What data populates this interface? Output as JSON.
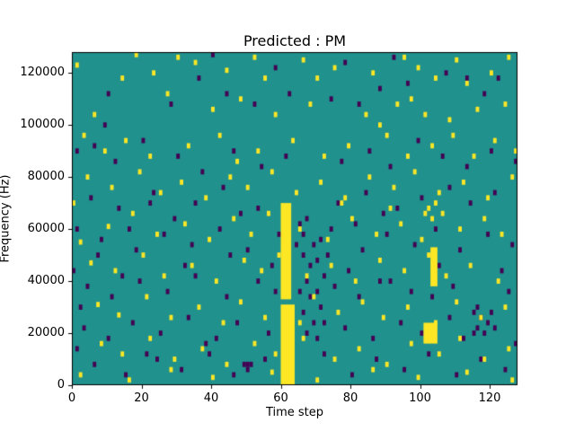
{
  "figure": {
    "title": "Predicted : PM",
    "xlabel": "Time step",
    "ylabel": "Frequency (Hz)"
  },
  "chart_data": {
    "type": "heatmap",
    "title": "Predicted : PM",
    "xlabel": "Time step",
    "ylabel": "Frequency (Hz)",
    "xlim": [
      0,
      128
    ],
    "ylim": [
      0,
      128000
    ],
    "x_ticks": [
      0,
      20,
      40,
      60,
      80,
      100,
      120
    ],
    "y_ticks": [
      0,
      20000,
      40000,
      60000,
      80000,
      100000,
      120000
    ],
    "grid": [
      128,
      128
    ],
    "f_unit": "kHz",
    "legend_position": "none",
    "grid_lines": false,
    "colors": {
      "background": "#20918c",
      "high": "#fde725",
      "low": "#440154"
    },
    "yellow_bands": [
      {
        "t0": 60,
        "t1": 64,
        "f0": 0,
        "f1": 31
      },
      {
        "t0": 60,
        "t1": 63,
        "f0": 33,
        "f1": 70
      },
      {
        "t0": 103,
        "t1": 105,
        "f0": 38,
        "f1": 53
      },
      {
        "t0": 101,
        "t1": 105,
        "f0": 16,
        "f1": 24
      }
    ],
    "yellow_cells": [
      [
        1,
        123
      ],
      [
        3,
        96
      ],
      [
        2,
        4
      ],
      [
        4,
        80
      ],
      [
        5,
        47
      ],
      [
        6,
        104
      ],
      [
        7,
        31
      ],
      [
        8,
        16
      ],
      [
        9,
        90
      ],
      [
        10,
        61
      ],
      [
        11,
        76
      ],
      [
        12,
        44
      ],
      [
        13,
        27
      ],
      [
        14,
        118
      ],
      [
        14,
        12
      ],
      [
        15,
        94
      ],
      [
        16,
        2
      ],
      [
        17,
        66
      ],
      [
        18,
        127
      ],
      [
        19,
        82
      ],
      [
        20,
        50
      ],
      [
        21,
        34
      ],
      [
        22,
        88
      ],
      [
        22,
        18
      ],
      [
        23,
        120
      ],
      [
        24,
        58
      ],
      [
        25,
        74
      ],
      [
        26,
        42
      ],
      [
        27,
        112
      ],
      [
        28,
        6
      ],
      [
        28,
        26
      ],
      [
        29,
        10
      ],
      [
        30,
        126
      ],
      [
        31,
        78
      ],
      [
        32,
        62
      ],
      [
        33,
        92
      ],
      [
        34,
        46
      ],
      [
        35,
        124
      ],
      [
        36,
        30
      ],
      [
        37,
        14
      ],
      [
        38,
        72
      ],
      [
        39,
        56
      ],
      [
        40,
        106
      ],
      [
        40,
        3
      ],
      [
        41,
        40
      ],
      [
        42,
        96
      ],
      [
        43,
        24
      ],
      [
        44,
        121
      ],
      [
        44,
        8
      ],
      [
        45,
        80
      ],
      [
        46,
        64
      ],
      [
        47,
        86
      ],
      [
        48,
        110
      ],
      [
        48,
        32
      ],
      [
        49,
        48
      ],
      [
        50,
        76
      ],
      [
        51,
        58
      ],
      [
        52,
        126
      ],
      [
        52,
        16
      ],
      [
        53,
        90
      ],
      [
        54,
        44
      ],
      [
        55,
        118
      ],
      [
        55,
        26
      ],
      [
        56,
        66
      ],
      [
        57,
        82
      ],
      [
        57,
        5
      ],
      [
        58,
        104
      ],
      [
        58,
        12
      ],
      [
        59,
        50
      ],
      [
        63,
        94
      ],
      [
        64,
        74
      ],
      [
        65,
        60
      ],
      [
        65,
        24
      ],
      [
        66,
        125
      ],
      [
        66,
        18
      ],
      [
        67,
        42
      ],
      [
        68,
        108
      ],
      [
        69,
        34
      ],
      [
        70,
        118
      ],
      [
        70,
        2
      ],
      [
        71,
        78
      ],
      [
        72,
        88
      ],
      [
        73,
        56
      ],
      [
        74,
        46
      ],
      [
        75,
        122
      ],
      [
        75,
        10
      ],
      [
        76,
        28
      ],
      [
        77,
        70
      ],
      [
        78,
        72
      ],
      [
        79,
        92
      ],
      [
        80,
        64
      ],
      [
        81,
        40
      ],
      [
        82,
        14
      ],
      [
        83,
        32
      ],
      [
        84,
        104
      ],
      [
        85,
        80
      ],
      [
        86,
        120
      ],
      [
        86,
        6
      ],
      [
        87,
        58
      ],
      [
        88,
        100
      ],
      [
        88,
        48
      ],
      [
        89,
        26
      ],
      [
        90,
        96
      ],
      [
        90,
        8
      ],
      [
        91,
        68
      ],
      [
        92,
        76
      ],
      [
        93,
        108
      ],
      [
        94,
        62
      ],
      [
        95,
        126
      ],
      [
        95,
        44
      ],
      [
        96,
        88
      ],
      [
        96,
        30
      ],
      [
        97,
        110
      ],
      [
        97,
        16
      ],
      [
        98,
        82
      ],
      [
        99,
        122
      ],
      [
        99,
        3
      ],
      [
        100,
        56
      ],
      [
        101,
        104
      ],
      [
        102,
        50
      ],
      [
        103,
        92
      ],
      [
        101,
        66
      ],
      [
        102,
        68
      ],
      [
        103,
        64
      ],
      [
        104,
        70
      ],
      [
        104,
        118
      ],
      [
        104,
        24
      ],
      [
        105,
        74
      ],
      [
        105,
        12
      ],
      [
        106,
        66
      ],
      [
        107,
        42
      ],
      [
        108,
        102
      ],
      [
        109,
        96
      ],
      [
        110,
        125
      ],
      [
        110,
        32
      ],
      [
        111,
        60
      ],
      [
        111,
        18
      ],
      [
        112,
        78
      ],
      [
        113,
        116
      ],
      [
        113,
        5
      ],
      [
        114,
        46
      ],
      [
        115,
        88
      ],
      [
        116,
        106
      ],
      [
        117,
        26
      ],
      [
        118,
        64
      ],
      [
        118,
        10
      ],
      [
        119,
        72
      ],
      [
        120,
        120
      ],
      [
        121,
        94
      ],
      [
        122,
        40
      ],
      [
        123,
        58
      ],
      [
        124,
        108
      ],
      [
        124,
        30
      ],
      [
        125,
        126
      ],
      [
        125,
        14
      ],
      [
        126,
        80
      ],
      [
        127,
        90
      ],
      [
        126,
        2
      ],
      [
        0,
        70
      ],
      [
        2,
        55
      ]
    ],
    "purple_cells": [
      [
        0,
        44
      ],
      [
        1,
        90
      ],
      [
        1,
        60
      ],
      [
        1,
        14
      ],
      [
        2,
        30
      ],
      [
        3,
        22
      ],
      [
        4,
        38
      ],
      [
        5,
        72
      ],
      [
        6,
        92
      ],
      [
        6,
        8
      ],
      [
        7,
        50
      ],
      [
        8,
        56
      ],
      [
        9,
        100
      ],
      [
        10,
        18
      ],
      [
        10,
        112
      ],
      [
        11,
        34
      ],
      [
        12,
        86
      ],
      [
        13,
        68
      ],
      [
        14,
        42
      ],
      [
        15,
        4
      ],
      [
        16,
        60
      ],
      [
        17,
        24
      ],
      [
        18,
        52
      ],
      [
        19,
        40
      ],
      [
        20,
        94
      ],
      [
        21,
        12
      ],
      [
        22,
        70
      ],
      [
        23,
        74
      ],
      [
        24,
        10
      ],
      [
        25,
        20
      ],
      [
        26,
        58
      ],
      [
        27,
        36
      ],
      [
        28,
        108
      ],
      [
        29,
        64
      ],
      [
        30,
        88
      ],
      [
        31,
        6
      ],
      [
        32,
        46
      ],
      [
        33,
        26
      ],
      [
        34,
        54
      ],
      [
        35,
        70
      ],
      [
        35,
        42
      ],
      [
        36,
        118
      ],
      [
        37,
        82
      ],
      [
        38,
        16
      ],
      [
        39,
        12
      ],
      [
        40,
        127
      ],
      [
        41,
        18
      ],
      [
        42,
        60
      ],
      [
        43,
        76
      ],
      [
        44,
        112
      ],
      [
        44,
        34
      ],
      [
        45,
        50
      ],
      [
        46,
        90
      ],
      [
        46,
        4
      ],
      [
        47,
        24
      ],
      [
        48,
        66
      ],
      [
        49,
        8
      ],
      [
        50,
        8
      ],
      [
        50,
        52
      ],
      [
        51,
        8
      ],
      [
        50,
        6
      ],
      [
        52,
        108
      ],
      [
        53,
        40
      ],
      [
        53,
        68
      ],
      [
        54,
        84
      ],
      [
        55,
        10
      ],
      [
        56,
        20
      ],
      [
        57,
        46
      ],
      [
        58,
        122
      ],
      [
        58,
        36
      ],
      [
        59,
        58
      ],
      [
        61,
        88
      ],
      [
        62,
        112
      ],
      [
        62,
        2
      ],
      [
        63,
        6
      ],
      [
        64,
        54
      ],
      [
        65,
        62
      ],
      [
        65,
        36
      ],
      [
        66,
        58
      ],
      [
        66,
        50
      ],
      [
        66,
        28
      ],
      [
        67,
        64
      ],
      [
        67,
        40
      ],
      [
        67,
        20
      ],
      [
        68,
        46
      ],
      [
        68,
        34
      ],
      [
        69,
        54
      ],
      [
        69,
        24
      ],
      [
        70,
        48
      ],
      [
        70,
        36
      ],
      [
        70,
        18
      ],
      [
        71,
        30
      ],
      [
        71,
        56
      ],
      [
        72,
        42
      ],
      [
        72,
        24
      ],
      [
        72,
        12
      ],
      [
        73,
        50
      ],
      [
        74,
        60
      ],
      [
        74,
        110
      ],
      [
        75,
        38
      ],
      [
        76,
        70
      ],
      [
        77,
        86
      ],
      [
        78,
        124
      ],
      [
        78,
        22
      ],
      [
        79,
        44
      ],
      [
        80,
        4
      ],
      [
        81,
        62
      ],
      [
        82,
        34
      ],
      [
        82,
        108
      ],
      [
        83,
        52
      ],
      [
        84,
        74
      ],
      [
        85,
        90
      ],
      [
        86,
        18
      ],
      [
        87,
        10
      ],
      [
        88,
        114
      ],
      [
        88,
        40
      ],
      [
        89,
        66
      ],
      [
        90,
        58
      ],
      [
        91,
        84
      ],
      [
        91,
        40
      ],
      [
        92,
        126
      ],
      [
        93,
        68
      ],
      [
        94,
        24
      ],
      [
        95,
        6
      ],
      [
        96,
        116
      ],
      [
        97,
        36
      ],
      [
        98,
        54
      ],
      [
        99,
        94
      ],
      [
        100,
        20
      ],
      [
        100,
        72
      ],
      [
        102,
        12
      ],
      [
        103,
        34
      ],
      [
        104,
        60
      ],
      [
        105,
        46
      ],
      [
        106,
        88
      ],
      [
        107,
        120
      ],
      [
        108,
        26
      ],
      [
        108,
        76
      ],
      [
        109,
        38
      ],
      [
        110,
        4
      ],
      [
        111,
        52
      ],
      [
        112,
        18
      ],
      [
        113,
        84
      ],
      [
        113,
        118
      ],
      [
        114,
        70
      ],
      [
        115,
        28
      ],
      [
        115,
        20
      ],
      [
        116,
        22
      ],
      [
        116,
        30
      ],
      [
        117,
        26
      ],
      [
        117,
        10
      ],
      [
        118,
        20
      ],
      [
        118,
        112
      ],
      [
        119,
        24
      ],
      [
        119,
        58
      ],
      [
        120,
        90
      ],
      [
        120,
        28
      ],
      [
        121,
        22
      ],
      [
        121,
        74
      ],
      [
        122,
        118
      ],
      [
        123,
        44
      ],
      [
        124,
        6
      ],
      [
        125,
        36
      ],
      [
        126,
        54
      ],
      [
        127,
        86
      ],
      [
        127,
        16
      ]
    ]
  }
}
